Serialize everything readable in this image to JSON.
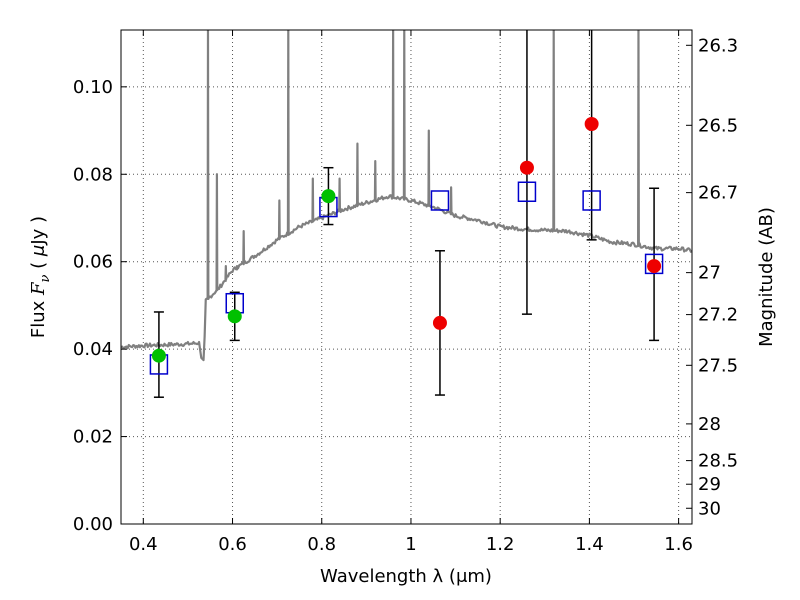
{
  "chart_data": {
    "type": "scatter",
    "title": "",
    "xlabel": "Wavelength  λ (μm)",
    "ylabel_parts": {
      "pre": "Flux  ",
      "var": "F",
      "sub": "ν",
      "mid": "  (  ",
      "mu": "μ",
      "post": "Jy  )"
    },
    "y2label": "Magnitude (AB)",
    "xlim": [
      0.35,
      1.63
    ],
    "ylim": [
      0.0,
      0.113
    ],
    "grid": true,
    "x_ticks": [
      0.4,
      0.6,
      0.8,
      1.0,
      1.2,
      1.4,
      1.6
    ],
    "x_tick_labels": [
      "0.4",
      "0.6",
      "0.8",
      "1",
      "1.2",
      "1.4",
      "1.6"
    ],
    "y_ticks": [
      0.0,
      0.02,
      0.04,
      0.06,
      0.08,
      0.1
    ],
    "y_tick_labels": [
      "0.00",
      "0.02",
      "0.04",
      "0.06",
      "0.08",
      "0.10"
    ],
    "y2_ticks": [
      {
        "label": "26.3",
        "flux": 0.1095
      },
      {
        "label": "26.5",
        "flux": 0.0912
      },
      {
        "label": "26.7",
        "flux": 0.0758
      },
      {
        "label": "27",
        "flux": 0.0575
      },
      {
        "label": "27.2",
        "flux": 0.0479
      },
      {
        "label": "27.5",
        "flux": 0.0363
      },
      {
        "label": "28",
        "flux": 0.0229
      },
      {
        "label": "28.5",
        "flux": 0.0145
      },
      {
        "label": "29",
        "flux": 0.0091
      },
      {
        "label": "30",
        "flux": 0.0036
      }
    ],
    "colors": {
      "spectrum": "#808080",
      "model": "#0000cc",
      "optical": "#00c000",
      "infrared": "#ee0000",
      "errorbar": "#000000",
      "grid": "#555555"
    },
    "spectrum": {
      "continuum": [
        [
          0.35,
          0.0405
        ],
        [
          0.4,
          0.0408
        ],
        [
          0.45,
          0.041
        ],
        [
          0.5,
          0.0412
        ],
        [
          0.535,
          0.0415
        ],
        [
          0.54,
          0.051
        ],
        [
          0.57,
          0.054
        ],
        [
          0.6,
          0.058
        ],
        [
          0.63,
          0.06
        ],
        [
          0.66,
          0.062
        ],
        [
          0.7,
          0.065
        ],
        [
          0.75,
          0.068
        ],
        [
          0.8,
          0.07
        ],
        [
          0.85,
          0.072
        ],
        [
          0.9,
          0.0735
        ],
        [
          0.95,
          0.075
        ],
        [
          1.0,
          0.074
        ],
        [
          1.05,
          0.0725
        ],
        [
          1.1,
          0.0705
        ],
        [
          1.15,
          0.0695
        ],
        [
          1.2,
          0.068
        ],
        [
          1.25,
          0.0675
        ],
        [
          1.3,
          0.0672
        ],
        [
          1.35,
          0.067
        ],
        [
          1.4,
          0.066
        ],
        [
          1.45,
          0.0645
        ],
        [
          1.5,
          0.064
        ],
        [
          1.55,
          0.063
        ],
        [
          1.6,
          0.063
        ],
        [
          1.63,
          0.0625
        ]
      ],
      "break_dip": [
        [
          0.525,
          0.0415
        ],
        [
          0.53,
          0.038
        ],
        [
          0.535,
          0.0375
        ],
        [
          0.538,
          0.044
        ]
      ],
      "emission_lines": [
        {
          "x": 0.545,
          "peak": 0.113
        },
        {
          "x": 0.565,
          "peak": 0.08
        },
        {
          "x": 0.585,
          "peak": 0.059
        },
        {
          "x": 0.61,
          "peak": 0.059
        },
        {
          "x": 0.625,
          "peak": 0.067
        },
        {
          "x": 0.705,
          "peak": 0.074
        },
        {
          "x": 0.725,
          "peak": 0.113
        },
        {
          "x": 0.78,
          "peak": 0.079
        },
        {
          "x": 0.84,
          "peak": 0.079
        },
        {
          "x": 0.88,
          "peak": 0.087
        },
        {
          "x": 0.92,
          "peak": 0.083
        },
        {
          "x": 0.96,
          "peak": 0.113
        },
        {
          "x": 0.985,
          "peak": 0.113
        },
        {
          "x": 1.04,
          "peak": 0.09
        },
        {
          "x": 1.09,
          "peak": 0.077
        },
        {
          "x": 1.32,
          "peak": 0.113
        },
        {
          "x": 1.51,
          "peak": 0.113
        }
      ]
    },
    "series": [
      {
        "marker": "open-square",
        "points": [
          {
            "x": 0.435,
            "y": 0.0365
          },
          {
            "x": 0.605,
            "y": 0.0505
          },
          {
            "x": 0.815,
            "y": 0.0725
          },
          {
            "x": 1.065,
            "y": 0.074
          },
          {
            "x": 1.26,
            "y": 0.076
          },
          {
            "x": 1.405,
            "y": 0.074
          },
          {
            "x": 1.545,
            "y": 0.0595
          }
        ]
      },
      {
        "marker": "filled-circle-green",
        "points": [
          {
            "x": 0.435,
            "y": 0.0385,
            "err_low": 0.029,
            "err_high": 0.0485
          },
          {
            "x": 0.605,
            "y": 0.0475,
            "err_low": 0.042,
            "err_high": 0.053
          },
          {
            "x": 0.815,
            "y": 0.075,
            "err_low": 0.0685,
            "err_high": 0.0815
          }
        ]
      },
      {
        "marker": "filled-circle-red",
        "points": [
          {
            "x": 1.065,
            "y": 0.046,
            "err_low": 0.0295,
            "err_high": 0.0625
          },
          {
            "x": 1.26,
            "y": 0.0815,
            "err_low": 0.048,
            "err_high": 0.113
          },
          {
            "x": 1.405,
            "y": 0.0915,
            "err_low": 0.065,
            "err_high": 0.113
          },
          {
            "x": 1.545,
            "y": 0.059,
            "err_low": 0.042,
            "err_high": 0.0768
          }
        ]
      }
    ]
  }
}
